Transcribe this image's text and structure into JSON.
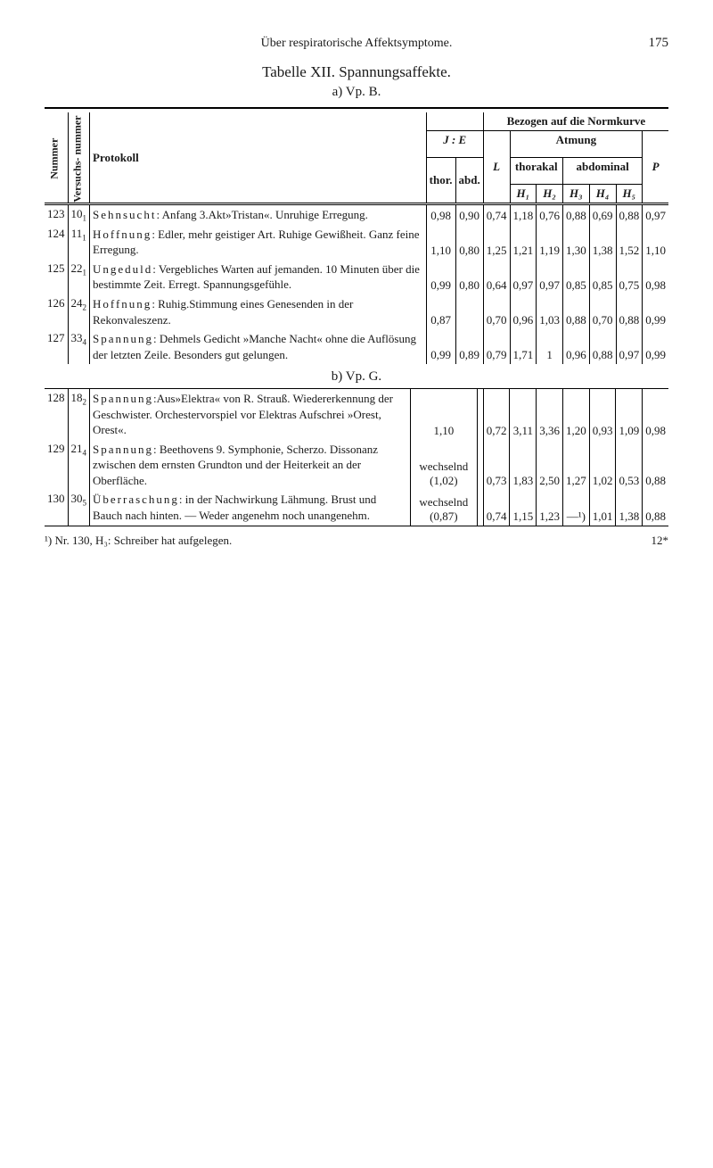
{
  "header": {
    "running": "Über respiratorische Affektsymptome.",
    "page": "175"
  },
  "titles": {
    "main": "Tabelle XII.   Spannungsaffekte.",
    "sub_a": "a) Vp. B.",
    "sub_b": "b) Vp. G."
  },
  "cols": {
    "nummer": "Nummer",
    "versuchs": "Versuchs- nummer",
    "protokoll": "Protokoll",
    "bezogen": "Bezogen auf die Normkurve",
    "JE": "J : E",
    "thor": "thor.",
    "abd": "abd.",
    "L": "L",
    "atmung": "Atmung",
    "thorakal": "thorakal",
    "abdominal": "abdominal",
    "P": "P",
    "H1": "H₁",
    "H2": "H₂",
    "H3": "H₃",
    "H4": "H₄",
    "H5": "H₅"
  },
  "rows_a": [
    {
      "num": "123",
      "vn": "10",
      "vns": "1",
      "proto": "Sehnsucht: Anfang 3.Akt»Tristan«. Unruhige Erregung.",
      "lead": "Sehnsucht",
      "thor": "0,98",
      "abd": "0,90",
      "L": "0,74",
      "H1": "1,18",
      "H2": "0,76",
      "H3": "0,88",
      "H4": "0,69",
      "H5": "0,88",
      "P": "0,97"
    },
    {
      "num": "124",
      "vn": "11",
      "vns": "1",
      "proto": "Hoffnung: Edler, mehr geistiger Art. Ruhige Gewißheit. Ganz feine Erregung.",
      "lead": "Hoffnung",
      "thor": "1,10",
      "abd": "0,80",
      "L": "1,25",
      "H1": "1,21",
      "H2": "1,19",
      "H3": "1,30",
      "H4": "1,38",
      "H5": "1,52",
      "P": "1,10"
    },
    {
      "num": "125",
      "vn": "22",
      "vns": "1",
      "proto": "Ungeduld: Vergebliches Warten auf jemanden. 10 Minuten über die bestimmte Zeit. Erregt. Spannungsgefühle.",
      "lead": "Ungeduld",
      "thor": "0,99",
      "abd": "0,80",
      "L": "0,64",
      "H1": "0,97",
      "H2": "0,97",
      "H3": "0,85",
      "H4": "0,85",
      "H5": "0,75",
      "P": "0,98"
    },
    {
      "num": "126",
      "vn": "24",
      "vns": "2",
      "proto": "Hoffnung: Ruhig.Stimmung eines Genesenden in der Rekonvaleszenz.",
      "lead": "Hoffnung",
      "thor": "0,87",
      "abd": "",
      "L": "0,70",
      "H1": "0,96",
      "H2": "1,03",
      "H3": "0,88",
      "H4": "0,70",
      "H5": "0,88",
      "P": "0,99"
    },
    {
      "num": "127",
      "vn": "33",
      "vns": "4",
      "proto": "Spannung: Dehmels Gedicht »Manche Nacht« ohne die Auflösung der letzten Zeile. Besonders gut gelungen.",
      "lead": "Spannung",
      "thor": "0,99",
      "abd": "0,89",
      "L": "0,79",
      "H1": "1,71",
      "H2": "1",
      "H3": "0,96",
      "H4": "0,88",
      "H5": "0,97",
      "P": "0,99"
    }
  ],
  "rows_b": [
    {
      "num": "128",
      "vn": "18",
      "vns": "2",
      "proto": "Spannung:Aus»Elektra« von R. Strauß. Wiedererkennung der Geschwister. Orchestervorspiel vor Elektras Aufschrei »Orest, Orest«.",
      "lead": "Spannung",
      "thor": "1,10",
      "abd": "",
      "L": "0,72",
      "H1": "3,11",
      "H2": "3,36",
      "H3": "1,20",
      "H4": "0,93",
      "H5": "1,09",
      "P": "0,98"
    },
    {
      "num": "129",
      "vn": "21",
      "vns": "4",
      "proto": "Spannung: Beethovens 9. Symphonie, Scherzo. Dissonanz zwischen dem ernsten Grundton und der Heiterkeit an der Oberfläche.",
      "lead": "Spannung",
      "thor": "wechselnd (1,02)",
      "abd": "",
      "L": "0,73",
      "H1": "1,83",
      "H2": "2,50",
      "H3": "1,27",
      "H4": "1,02",
      "H5": "0,53",
      "P": "0,88"
    },
    {
      "num": "130",
      "vn": "30",
      "vns": "5",
      "proto": "Überraschung: in der Nachwirkung Lähmung. Brust und Bauch nach hinten. — Weder angenehm noch unangenehm.",
      "lead": "Überraschung",
      "thor": "wechselnd (0,87)",
      "abd": "",
      "L": "0,74",
      "H1": "1,15",
      "H2": "1,23",
      "H3": "—¹)",
      "H4": "1,01",
      "H5": "1,38",
      "P": "0,88"
    }
  ],
  "footnote": {
    "mark": "¹)",
    "txt": "Nr. 130, H₃: Schreiber hat aufgelegen.",
    "sig": "12*"
  }
}
